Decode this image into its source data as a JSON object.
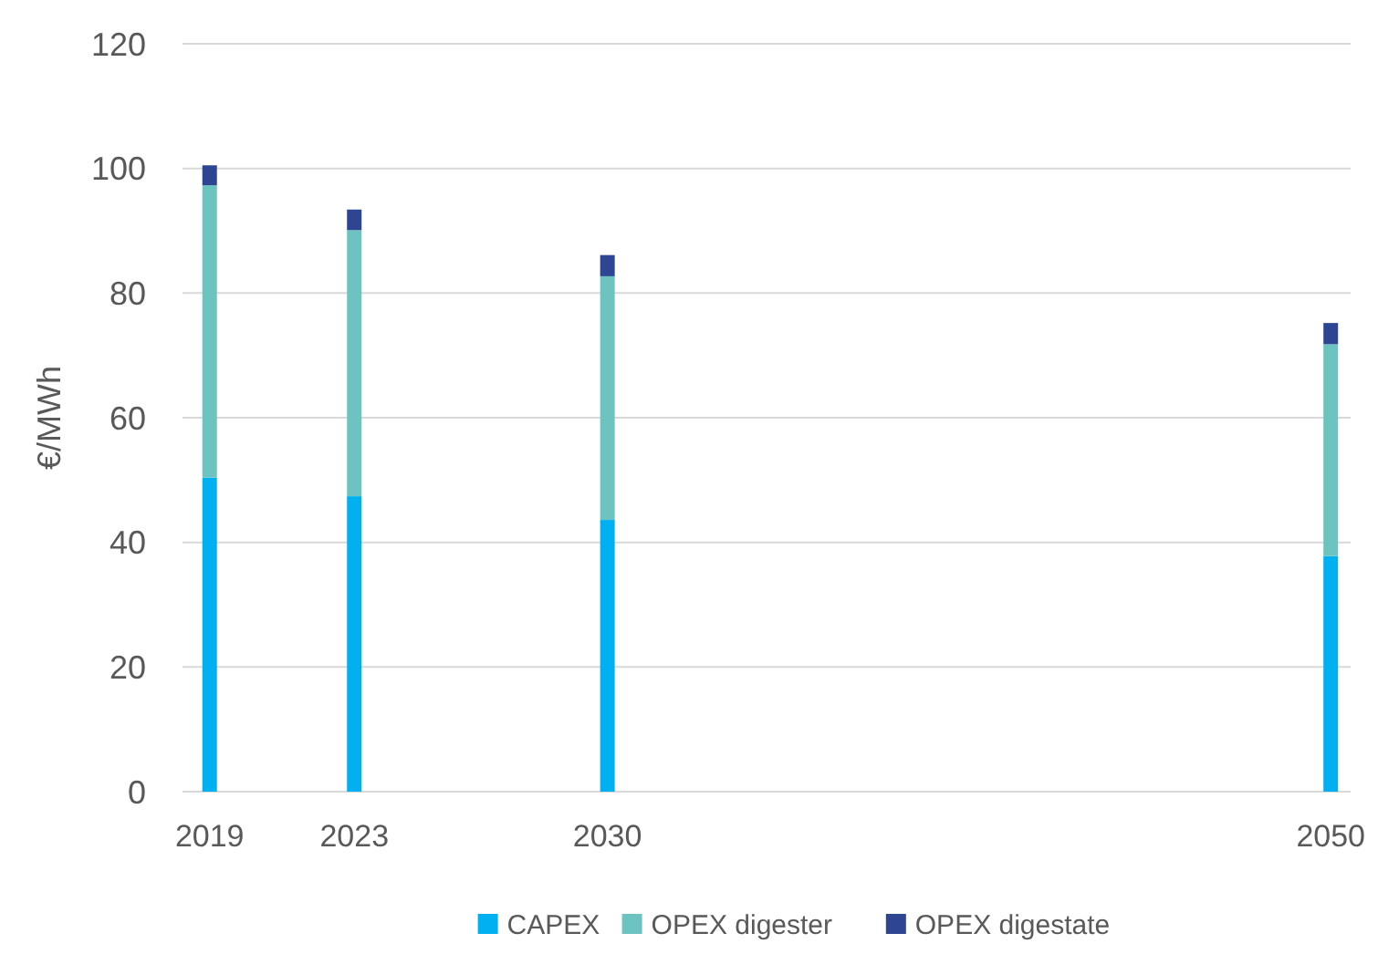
{
  "chart_data": {
    "type": "bar",
    "stacked": true,
    "ylabel": "€/MWh",
    "x": [
      2019,
      2023,
      2030,
      2050
    ],
    "xlim": [
      2018.25,
      2050.55
    ],
    "xticks": [
      2019,
      2023,
      2030,
      2050
    ],
    "ylim": [
      0,
      120
    ],
    "yticks": [
      0,
      20,
      40,
      60,
      80,
      100,
      120
    ],
    "grid": "y",
    "legend": "bottom",
    "series": [
      {
        "name": "CAPEX",
        "color": "#00b0f0",
        "values": [
          50.4,
          47.4,
          43.6,
          37.8
        ]
      },
      {
        "name": "OPEX digester",
        "color": "#6cc3c0",
        "values": [
          46.9,
          42.7,
          39.1,
          34.0
        ]
      },
      {
        "name": "OPEX digestate",
        "color": "#2e4593",
        "values": [
          3.2,
          3.3,
          3.4,
          3.4
        ]
      }
    ]
  }
}
